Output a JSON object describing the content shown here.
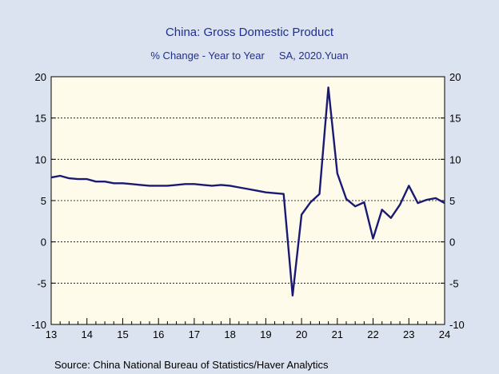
{
  "chart_data": {
    "type": "line",
    "title": "China: Gross Domestic Product",
    "subtitle": "% Change - Year to Year     SA, 2020.Yuan",
    "source": "Source:  China National Bureau of Statistics/Haver Analytics",
    "ylim": [
      -10,
      20
    ],
    "yticks": [
      "20",
      "15",
      "10",
      "5",
      "0",
      "-5",
      "-10"
    ],
    "xlim": [
      2013.0,
      2024.0
    ],
    "xticks": [
      "13",
      "14",
      "15",
      "16",
      "17",
      "18",
      "19",
      "20",
      "21",
      "22",
      "23",
      "24"
    ],
    "grid": "horizontal dotted",
    "colors": {
      "line": "#1a1a75",
      "plot_bg": "#fffbea",
      "page_bg": "#dbe2f0",
      "title": "#1f2f8f"
    },
    "series": [
      {
        "x": [
          2013.0,
          2013.25,
          2013.5,
          2013.75,
          2014.0,
          2014.25,
          2014.5,
          2014.75,
          2015.0,
          2015.25,
          2015.5,
          2015.75,
          2016.0,
          2016.25,
          2016.5,
          2016.75,
          2017.0,
          2017.25,
          2017.5,
          2017.75,
          2018.0,
          2018.25,
          2018.5,
          2018.75,
          2019.0,
          2019.25,
          2019.5,
          2019.75,
          2020.0,
          2020.25,
          2020.5,
          2020.75,
          2021.0,
          2021.25,
          2021.5,
          2021.75,
          2022.0,
          2022.25,
          2022.5,
          2022.75,
          2023.0,
          2023.25,
          2023.5,
          2023.75,
          2024.0
        ],
        "y": [
          7.8,
          8.0,
          7.7,
          7.6,
          7.6,
          7.3,
          7.3,
          7.1,
          7.1,
          7.0,
          6.9,
          6.8,
          6.8,
          6.8,
          6.9,
          7.0,
          7.0,
          6.9,
          6.8,
          6.9,
          6.8,
          6.6,
          6.4,
          6.2,
          6.0,
          5.9,
          5.8,
          -6.5,
          3.3,
          4.8,
          5.8,
          18.7,
          8.3,
          5.2,
          4.3,
          4.8,
          0.4,
          3.9,
          2.9,
          4.5,
          6.8,
          4.7,
          5.1,
          5.3,
          4.7
        ]
      }
    ]
  }
}
